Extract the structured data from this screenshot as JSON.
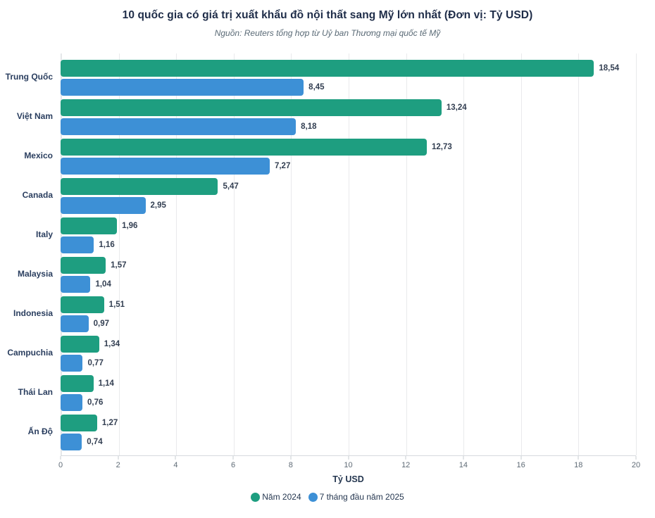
{
  "header": {
    "title": "10 quốc gia có giá trị xuất khẩu đồ nội thất sang Mỹ lớn nhất (Đơn vị: Tỷ USD)",
    "subtitle": "Nguồn: Reuters tổng hợp từ Uỷ ban Thương mại quốc tế Mỹ"
  },
  "chart_data": {
    "type": "bar",
    "orientation": "horizontal",
    "title": "10 quốc gia có giá trị xuất khẩu đồ nội thất sang Mỹ lớn nhất (Đơn vị: Tỷ USD)",
    "subtitle": "Nguồn: Reuters tổng hợp từ Uỷ ban Thương mại quốc tế Mỹ",
    "categories": [
      "Trung Quốc",
      "Việt Nam",
      "Mexico",
      "Canada",
      "Italy",
      "Malaysia",
      "Indonesia",
      "Campuchia",
      "Thái Lan",
      "Ấn Độ"
    ],
    "series": [
      {
        "name": "Năm 2024",
        "color": "#1e9e80",
        "values": [
          18.54,
          13.24,
          12.73,
          5.47,
          1.96,
          1.57,
          1.51,
          1.34,
          1.14,
          1.27
        ],
        "labels": [
          "18,54",
          "13,24",
          "12,73",
          "5,47",
          "1,96",
          "1,57",
          "1,51",
          "1,34",
          "1,14",
          "1,27"
        ]
      },
      {
        "name": "7 tháng đầu năm 2025",
        "color": "#3d90d6",
        "values": [
          8.45,
          8.18,
          7.27,
          2.95,
          1.16,
          1.04,
          0.97,
          0.77,
          0.76,
          0.74
        ],
        "labels": [
          "8,45",
          "8,18",
          "7,27",
          "2,95",
          "1,16",
          "1,04",
          "0,97",
          "0,77",
          "0,76",
          "0,74"
        ]
      }
    ],
    "xlabel": "Tỷ USD",
    "xlim": [
      0,
      20
    ],
    "xticks": [
      0,
      2,
      4,
      6,
      8,
      10,
      12,
      14,
      16,
      18,
      20
    ],
    "grid": true,
    "legend_position": "bottom",
    "decimal_separator": ","
  }
}
